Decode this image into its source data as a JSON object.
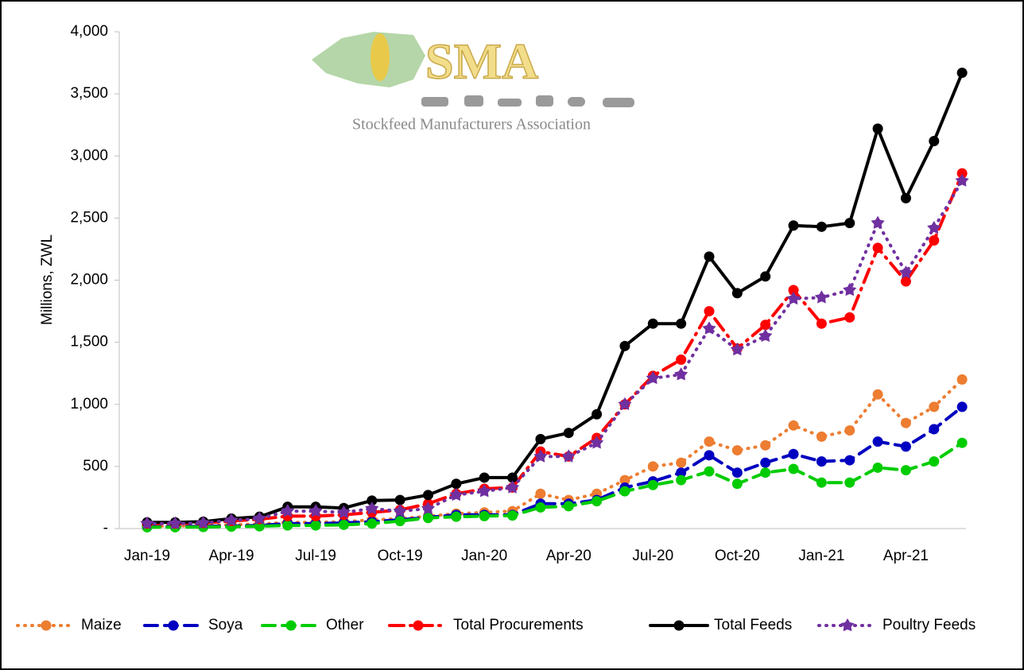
{
  "logo": {
    "name": "SMA",
    "tagline": "Stockfeed Manufacturers Association"
  },
  "chart_data": {
    "type": "line",
    "y_label": "Millions, ZWL",
    "categories": [
      "Jan-19",
      null,
      null,
      "Apr-19",
      null,
      null,
      "Jul-19",
      null,
      null,
      "Oct-19",
      null,
      null,
      "Jan-20",
      null,
      null,
      "Apr-20",
      null,
      null,
      "Jul-20",
      null,
      null,
      "Oct-20",
      null,
      null,
      "Jan-21",
      null,
      null,
      "Apr-21",
      null,
      null
    ],
    "ylim": [
      0,
      4000
    ],
    "yticks": [
      {
        "value": 0,
        "label": "-"
      },
      500,
      {
        "value": 1000,
        "label": "1,000"
      },
      {
        "value": 1500,
        "label": "1,500"
      },
      {
        "value": 2000,
        "label": "2,000"
      },
      {
        "value": 2500,
        "label": "2,500"
      },
      {
        "value": 3000,
        "label": "3,000"
      },
      {
        "value": 3500,
        "label": "3,500"
      },
      {
        "value": 4000,
        "label": "4,000"
      }
    ],
    "grid": false,
    "legend": "bottom",
    "series": [
      {
        "name": "Maize",
        "color": "#ed7d31",
        "style": "dotted",
        "values": [
          20,
          20,
          25,
          30,
          35,
          50,
          50,
          55,
          70,
          80,
          100,
          120,
          130,
          140,
          280,
          230,
          280,
          390,
          500,
          530,
          700,
          630,
          670,
          830,
          740,
          790,
          1080,
          850,
          980,
          1200
        ]
      },
      {
        "name": "Soya",
        "color": "#0000c0",
        "style": "dashed",
        "values": [
          15,
          15,
          18,
          20,
          25,
          40,
          40,
          45,
          55,
          70,
          90,
          110,
          110,
          110,
          200,
          200,
          230,
          330,
          380,
          450,
          590,
          450,
          530,
          600,
          540,
          550,
          700,
          660,
          800,
          980
        ]
      },
      {
        "name": "Other",
        "color": "#00cc00",
        "style": "dashed",
        "values": [
          10,
          10,
          12,
          15,
          18,
          25,
          25,
          30,
          40,
          60,
          85,
          95,
          100,
          105,
          170,
          180,
          220,
          300,
          350,
          390,
          460,
          360,
          450,
          480,
          370,
          370,
          490,
          470,
          540,
          690
        ]
      },
      {
        "name": "Total Procurements",
        "color": "#ff0000",
        "style": "dashdot",
        "values": [
          40,
          40,
          45,
          60,
          75,
          100,
          100,
          110,
          130,
          150,
          200,
          280,
          320,
          330,
          620,
          580,
          730,
          1000,
          1230,
          1360,
          1750,
          1450,
          1640,
          1920,
          1650,
          1700,
          2260,
          1990,
          2320,
          2860
        ]
      },
      {
        "name": "Total Feeds",
        "color": "#000000",
        "style": "solid",
        "values": [
          50,
          50,
          55,
          80,
          95,
          175,
          175,
          165,
          225,
          230,
          270,
          360,
          410,
          410,
          720,
          770,
          920,
          1470,
          1650,
          1650,
          2190,
          1895,
          2030,
          2440,
          2430,
          2460,
          3220,
          2660,
          3120,
          3670
        ]
      },
      {
        "name": "Poultry Feeds",
        "color": "#7030a0",
        "style": "dotted",
        "marker": "star",
        "values": [
          40,
          40,
          45,
          65,
          80,
          140,
          140,
          130,
          160,
          140,
          160,
          270,
          300,
          330,
          580,
          580,
          690,
          1000,
          1210,
          1240,
          1610,
          1440,
          1550,
          1850,
          1860,
          1920,
          2460,
          2060,
          2420,
          2800
        ]
      }
    ]
  }
}
